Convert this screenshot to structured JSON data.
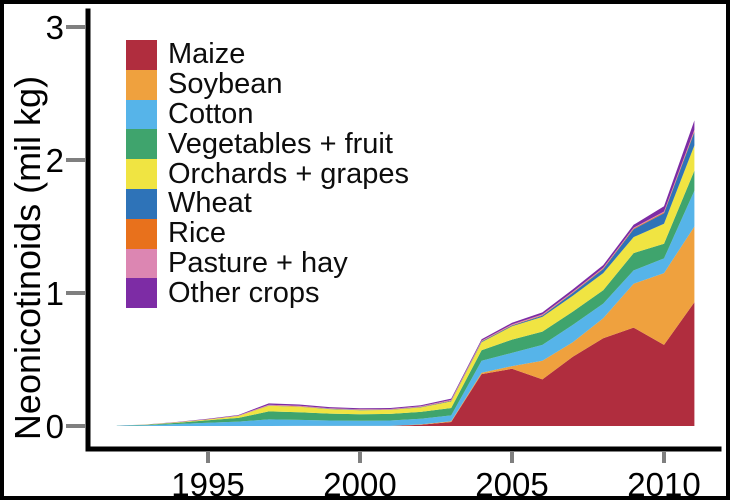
{
  "figure": {
    "ylabel": "Neonicotinoids (mil kg)"
  },
  "chart_data": {
    "type": "area",
    "stacked": true,
    "title": "",
    "xlabel": "",
    "ylabel": "Neonicotinoids (mil kg)",
    "grid": false,
    "legend_position": "top-left",
    "xlim": [
      1992,
      2011
    ],
    "ylim": [
      0,
      3
    ],
    "x": [
      1992,
      1993,
      1994,
      1995,
      1996,
      1997,
      1998,
      1999,
      2000,
      2001,
      2002,
      2003,
      2004,
      2005,
      2006,
      2007,
      2008,
      2009,
      2010,
      2011
    ],
    "x_ticks": [
      1995,
      2000,
      2005,
      2010
    ],
    "x_tick_labels": [
      "1995",
      "2000",
      "2005",
      "2010"
    ],
    "y_ticks": [
      0,
      1,
      2,
      3
    ],
    "y_tick_labels": [
      "0",
      "1",
      "2",
      "3"
    ],
    "series": [
      {
        "id": "maize",
        "name": "Maize",
        "color": "#B02D3E",
        "values": [
          0,
          0,
          0,
          0,
          0,
          0,
          0,
          0,
          0,
          0,
          0.01,
          0.03,
          0.39,
          0.43,
          0.35,
          0.52,
          0.66,
          0.74,
          0.61,
          0.93
        ]
      },
      {
        "id": "soybean",
        "name": "Soybean",
        "color": "#EFA13E",
        "values": [
          0,
          0,
          0,
          0,
          0,
          0,
          0.001,
          0.001,
          0.001,
          0.001,
          0.002,
          0.005,
          0.01,
          0.02,
          0.14,
          0.11,
          0.15,
          0.33,
          0.54,
          0.57
        ]
      },
      {
        "id": "cotton",
        "name": "Cotton",
        "color": "#56B4E9",
        "values": [
          0.002,
          0.006,
          0.015,
          0.025,
          0.033,
          0.05,
          0.045,
          0.04,
          0.038,
          0.04,
          0.042,
          0.045,
          0.09,
          0.1,
          0.12,
          0.13,
          0.11,
          0.1,
          0.11,
          0.27
        ]
      },
      {
        "id": "vegetables-fruit",
        "name": "Vegetables + fruit",
        "color": "#3FA46D",
        "values": [
          0.001,
          0.004,
          0.01,
          0.018,
          0.028,
          0.06,
          0.058,
          0.052,
          0.05,
          0.05,
          0.052,
          0.055,
          0.08,
          0.1,
          0.1,
          0.1,
          0.1,
          0.13,
          0.11,
          0.15
        ]
      },
      {
        "id": "orchards-grapes",
        "name": "Orchards + grapes",
        "color": "#F0E442",
        "values": [
          0,
          0.001,
          0.003,
          0.006,
          0.014,
          0.042,
          0.04,
          0.034,
          0.03,
          0.03,
          0.034,
          0.05,
          0.06,
          0.1,
          0.11,
          0.12,
          0.13,
          0.12,
          0.15,
          0.19
        ]
      },
      {
        "id": "wheat",
        "name": "Wheat",
        "color": "#2E73B8",
        "values": [
          0,
          0,
          0,
          0,
          0.001,
          0.002,
          0.002,
          0.002,
          0.002,
          0.002,
          0.003,
          0.004,
          0.005,
          0.006,
          0.01,
          0.02,
          0.03,
          0.06,
          0.08,
          0.1
        ]
      },
      {
        "id": "rice",
        "name": "Rice",
        "color": "#E8711C",
        "values": [
          0,
          0,
          0,
          0.001,
          0.001,
          0.002,
          0.002,
          0.002,
          0.002,
          0.002,
          0.002,
          0.003,
          0.003,
          0.003,
          0.004,
          0.004,
          0.005,
          0.005,
          0.006,
          0.008
        ]
      },
      {
        "id": "pasture-hay",
        "name": "Pasture + hay",
        "color": "#DC86B2",
        "values": [
          0,
          0,
          0.001,
          0.001,
          0.002,
          0.004,
          0.004,
          0.003,
          0.003,
          0.003,
          0.003,
          0.004,
          0.004,
          0.005,
          0.005,
          0.005,
          0.005,
          0.006,
          0.007,
          0.01
        ]
      },
      {
        "id": "other-crops",
        "name": "Other crops",
        "color": "#7D2CA5",
        "values": [
          0,
          0.001,
          0.002,
          0.003,
          0.004,
          0.01,
          0.01,
          0.008,
          0.007,
          0.007,
          0.008,
          0.01,
          0.01,
          0.012,
          0.015,
          0.018,
          0.02,
          0.022,
          0.04,
          0.07
        ]
      }
    ]
  }
}
